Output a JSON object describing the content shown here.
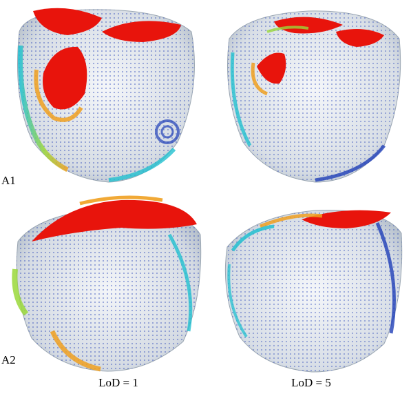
{
  "figure": {
    "row_labels": [
      "A1",
      "A2"
    ],
    "column_labels": [
      "LoD = 1",
      "LoD = 5"
    ],
    "panels": [
      {
        "id": "A1-lod1",
        "depicts": "heart-mesh-vector-field"
      },
      {
        "id": "A1-lod5",
        "depicts": "heart-mesh-vector-field"
      },
      {
        "id": "A2-lod1",
        "depicts": "heart-mesh-vector-field"
      },
      {
        "id": "A2-lod5",
        "depicts": "heart-mesh-vector-field"
      }
    ],
    "colors": {
      "high": "#e8140c",
      "mid_high": "#f0a020",
      "mid": "#9ad83a",
      "mid_low": "#22c0d0",
      "low": "#1f3fb8",
      "surface": "#dfe4ea"
    }
  }
}
